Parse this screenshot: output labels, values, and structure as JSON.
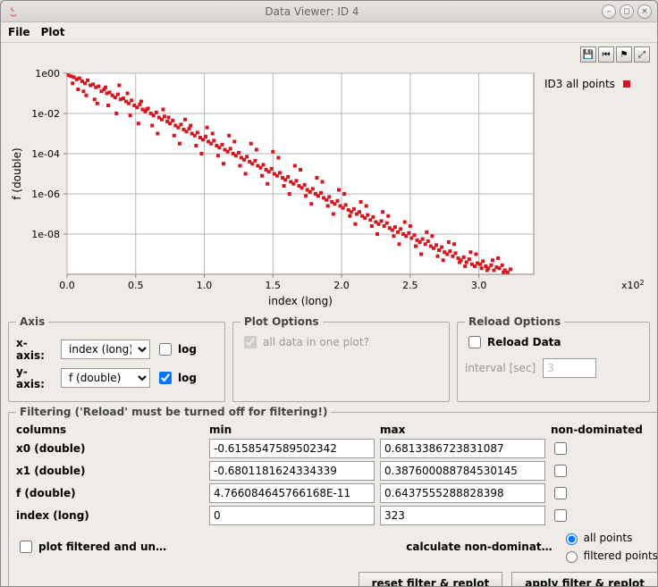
{
  "window": {
    "title": "Data Viewer: ID 4",
    "menus": [
      "File",
      "Plot"
    ]
  },
  "chart": {
    "type": "scatter",
    "xlabel": "index (long)",
    "ylabel": "f (double)",
    "xlim": [
      0,
      340
    ],
    "ylim_log10": [
      -10,
      0
    ],
    "x_ticks": [
      0,
      50,
      100,
      150,
      200,
      250,
      300
    ],
    "x_tick_labels": [
      "0.0",
      "0.5",
      "1.0",
      "1.5",
      "2.0",
      "2.5",
      "3.0"
    ],
    "x_multiplier_label": "x10",
    "x_multiplier_exp": "2",
    "y_ticks_log10": [
      0,
      -2,
      -4,
      -6,
      -8
    ],
    "y_tick_labels": [
      "1e00",
      "1e-02",
      "1e-04",
      "1e-06",
      "1e-08"
    ],
    "legend": {
      "label": "ID3 all points",
      "color": "#d6161e"
    },
    "marker_color": "#d6161e",
    "marker_size": 4,
    "background_color": "#ffffff",
    "grid_color": "#b9b5b1",
    "axis_color": "#8a8682",
    "points": [
      [
        1,
        -0.1
      ],
      [
        3,
        -0.15
      ],
      [
        5,
        -0.2
      ],
      [
        7,
        -0.3
      ],
      [
        9,
        -0.25
      ],
      [
        11,
        -0.4
      ],
      [
        13,
        -0.5
      ],
      [
        15,
        -0.35
      ],
      [
        17,
        -0.6
      ],
      [
        19,
        -0.55
      ],
      [
        21,
        -0.7
      ],
      [
        23,
        -0.65
      ],
      [
        25,
        -0.9
      ],
      [
        27,
        -0.8
      ],
      [
        29,
        -1.0
      ],
      [
        31,
        -0.95
      ],
      [
        33,
        -1.1
      ],
      [
        35,
        -1.2
      ],
      [
        37,
        -1.05
      ],
      [
        39,
        -1.3
      ],
      [
        41,
        -1.25
      ],
      [
        43,
        -1.4
      ],
      [
        45,
        -1.5
      ],
      [
        47,
        -1.35
      ],
      [
        49,
        -1.6
      ],
      [
        51,
        -1.7
      ],
      [
        53,
        -1.55
      ],
      [
        55,
        -1.8
      ],
      [
        57,
        -1.9
      ],
      [
        59,
        -1.75
      ],
      [
        61,
        -2.0
      ],
      [
        63,
        -2.1
      ],
      [
        65,
        -1.95
      ],
      [
        67,
        -2.2
      ],
      [
        69,
        -2.3
      ],
      [
        71,
        -2.15
      ],
      [
        73,
        -2.4
      ],
      [
        75,
        -2.5
      ],
      [
        77,
        -2.35
      ],
      [
        79,
        -2.6
      ],
      [
        81,
        -2.7
      ],
      [
        83,
        -2.55
      ],
      [
        85,
        -2.8
      ],
      [
        87,
        -2.9
      ],
      [
        89,
        -2.75
      ],
      [
        91,
        -3.0
      ],
      [
        93,
        -3.1
      ],
      [
        95,
        -2.95
      ],
      [
        97,
        -3.2
      ],
      [
        99,
        -3.3
      ],
      [
        101,
        -3.15
      ],
      [
        103,
        -3.4
      ],
      [
        105,
        -3.5
      ],
      [
        107,
        -3.35
      ],
      [
        109,
        -3.6
      ],
      [
        111,
        -3.7
      ],
      [
        113,
        -3.55
      ],
      [
        115,
        -3.8
      ],
      [
        117,
        -3.9
      ],
      [
        119,
        -3.75
      ],
      [
        121,
        -4.0
      ],
      [
        123,
        -4.1
      ],
      [
        125,
        -3.95
      ],
      [
        127,
        -4.2
      ],
      [
        129,
        -4.3
      ],
      [
        131,
        -4.15
      ],
      [
        133,
        -4.4
      ],
      [
        135,
        -4.5
      ],
      [
        137,
        -4.35
      ],
      [
        139,
        -4.6
      ],
      [
        141,
        -4.7
      ],
      [
        143,
        -4.55
      ],
      [
        145,
        -4.8
      ],
      [
        147,
        -4.9
      ],
      [
        149,
        -4.75
      ],
      [
        151,
        -5.0
      ],
      [
        153,
        -5.1
      ],
      [
        155,
        -4.95
      ],
      [
        157,
        -5.2
      ],
      [
        159,
        -5.3
      ],
      [
        161,
        -5.15
      ],
      [
        163,
        -5.4
      ],
      [
        165,
        -5.5
      ],
      [
        167,
        -5.35
      ],
      [
        169,
        -5.6
      ],
      [
        171,
        -5.7
      ],
      [
        173,
        -5.55
      ],
      [
        175,
        -5.8
      ],
      [
        177,
        -5.9
      ],
      [
        179,
        -5.75
      ],
      [
        181,
        -6.0
      ],
      [
        183,
        -6.1
      ],
      [
        185,
        -5.95
      ],
      [
        187,
        -6.2
      ],
      [
        189,
        -6.3
      ],
      [
        191,
        -6.15
      ],
      [
        193,
        -6.4
      ],
      [
        195,
        -6.5
      ],
      [
        197,
        -6.35
      ],
      [
        199,
        -6.6
      ],
      [
        201,
        -6.7
      ],
      [
        203,
        -6.55
      ],
      [
        205,
        -6.8
      ],
      [
        207,
        -6.9
      ],
      [
        209,
        -6.75
      ],
      [
        211,
        -7.0
      ],
      [
        213,
        -6.9
      ],
      [
        215,
        -7.1
      ],
      [
        217,
        -7.2
      ],
      [
        219,
        -7.05
      ],
      [
        221,
        -7.3
      ],
      [
        223,
        -7.15
      ],
      [
        225,
        -7.4
      ],
      [
        227,
        -7.5
      ],
      [
        229,
        -7.35
      ],
      [
        231,
        -7.6
      ],
      [
        233,
        -7.45
      ],
      [
        235,
        -7.7
      ],
      [
        237,
        -7.8
      ],
      [
        239,
        -7.65
      ],
      [
        241,
        -7.9
      ],
      [
        243,
        -7.75
      ],
      [
        245,
        -8.0
      ],
      [
        247,
        -8.1
      ],
      [
        249,
        -7.95
      ],
      [
        251,
        -8.2
      ],
      [
        253,
        -8.05
      ],
      [
        255,
        -8.3
      ],
      [
        257,
        -8.4
      ],
      [
        259,
        -8.25
      ],
      [
        261,
        -8.5
      ],
      [
        263,
        -8.35
      ],
      [
        265,
        -8.6
      ],
      [
        267,
        -8.7
      ],
      [
        269,
        -8.55
      ],
      [
        271,
        -8.8
      ],
      [
        273,
        -8.65
      ],
      [
        275,
        -8.9
      ],
      [
        277,
        -9.0
      ],
      [
        279,
        -8.85
      ],
      [
        281,
        -9.1
      ],
      [
        283,
        -8.95
      ],
      [
        285,
        -9.2
      ],
      [
        287,
        -9.3
      ],
      [
        289,
        -9.15
      ],
      [
        291,
        -9.4
      ],
      [
        293,
        -9.25
      ],
      [
        295,
        -9.5
      ],
      [
        297,
        -9.6
      ],
      [
        299,
        -9.45
      ],
      [
        301,
        -9.5
      ],
      [
        303,
        -9.35
      ],
      [
        305,
        -9.6
      ],
      [
        307,
        -9.7
      ],
      [
        309,
        -9.55
      ],
      [
        311,
        -9.8
      ],
      [
        313,
        -9.65
      ],
      [
        315,
        -9.7
      ],
      [
        317,
        -9.55
      ],
      [
        319,
        -9.8
      ],
      [
        321,
        -9.9
      ],
      [
        323,
        -9.75
      ],
      [
        8,
        -0.8
      ],
      [
        14,
        -1.1
      ],
      [
        22,
        -1.5
      ],
      [
        28,
        -0.7
      ],
      [
        36,
        -2.0
      ],
      [
        44,
        -1.0
      ],
      [
        52,
        -2.5
      ],
      [
        58,
        -1.8
      ],
      [
        66,
        -3.0
      ],
      [
        74,
        -2.2
      ],
      [
        82,
        -3.5
      ],
      [
        90,
        -2.6
      ],
      [
        98,
        -4.0
      ],
      [
        106,
        -3.0
      ],
      [
        114,
        -4.5
      ],
      [
        122,
        -3.4
      ],
      [
        130,
        -5.0
      ],
      [
        138,
        -3.8
      ],
      [
        146,
        -5.5
      ],
      [
        154,
        -4.2
      ],
      [
        162,
        -6.0
      ],
      [
        170,
        -4.8
      ],
      [
        178,
        -6.5
      ],
      [
        186,
        -5.4
      ],
      [
        194,
        -7.0
      ],
      [
        202,
        -6.0
      ],
      [
        210,
        -7.5
      ],
      [
        218,
        -6.6
      ],
      [
        226,
        -8.0
      ],
      [
        234,
        -7.1
      ],
      [
        242,
        -8.5
      ],
      [
        250,
        -7.6
      ],
      [
        258,
        -9.0
      ],
      [
        266,
        -8.1
      ],
      [
        274,
        -9.3
      ],
      [
        282,
        -8.5
      ],
      [
        290,
        -9.6
      ],
      [
        298,
        -9.0
      ],
      [
        306,
        -9.8
      ],
      [
        314,
        -9.2
      ],
      [
        4,
        -0.5
      ],
      [
        12,
        -0.9
      ],
      [
        20,
        -1.3
      ],
      [
        30,
        -1.6
      ],
      [
        38,
        -0.6
      ],
      [
        46,
        -2.1
      ],
      [
        54,
        -1.4
      ],
      [
        62,
        -2.6
      ],
      [
        70,
        -1.8
      ],
      [
        78,
        -3.1
      ],
      [
        86,
        -2.3
      ],
      [
        94,
        -3.6
      ],
      [
        102,
        -2.7
      ],
      [
        110,
        -4.1
      ],
      [
        118,
        -3.1
      ],
      [
        126,
        -4.6
      ],
      [
        134,
        -3.5
      ],
      [
        142,
        -5.1
      ],
      [
        150,
        -3.9
      ],
      [
        158,
        -5.6
      ],
      [
        166,
        -4.6
      ],
      [
        174,
        -6.1
      ],
      [
        182,
        -5.2
      ],
      [
        190,
        -6.6
      ],
      [
        198,
        -5.8
      ],
      [
        206,
        -7.1
      ],
      [
        214,
        -6.4
      ],
      [
        222,
        -7.6
      ],
      [
        230,
        -6.9
      ],
      [
        238,
        -8.1
      ],
      [
        246,
        -7.4
      ],
      [
        254,
        -8.6
      ],
      [
        262,
        -7.9
      ],
      [
        270,
        -9.1
      ],
      [
        278,
        -8.4
      ],
      [
        286,
        -9.4
      ],
      [
        294,
        -8.9
      ],
      [
        302,
        -9.7
      ],
      [
        310,
        -9.3
      ],
      [
        318,
        -9.9
      ]
    ]
  },
  "axis_panel": {
    "legend": "Axis",
    "x_label": "x-axis:",
    "y_label": "y-axis:",
    "x_select": "index (long)",
    "y_select": "f (double)",
    "log_label": "log",
    "x_log_checked": false,
    "y_log_checked": true
  },
  "plot_options": {
    "legend": "Plot Options",
    "all_data_label": "all data in one plot?",
    "all_data_checked": true
  },
  "reload_options": {
    "legend": "Reload Options",
    "reload_label": "Reload Data",
    "reload_checked": false,
    "interval_label": "interval [sec]",
    "interval_value": "3"
  },
  "filtering": {
    "legend": "Filtering ('Reload' must be turned off for filtering!)",
    "headers": {
      "columns": "columns",
      "min": "min",
      "max": "max",
      "nd": "non-dominated"
    },
    "rows": [
      {
        "name": "x0 (double)",
        "min": "-0.6158547589502342",
        "max": "0.6813386723831087",
        "nd": false
      },
      {
        "name": "x1 (double)",
        "min": "-0.6801181624334339",
        "max": "0.387600088784530145",
        "nd": false
      },
      {
        "name": "f (double)",
        "min": "4.766084645766168E-11",
        "max": "0.6437555288828398",
        "nd": false
      },
      {
        "name": "index (long)",
        "min": "0",
        "max": "323",
        "nd": false
      }
    ],
    "plot_filtered_label": "plot filtered and un…",
    "plot_filtered_checked": false,
    "calc_nd_label": "calculate non-dominat…",
    "radio_all": "all points",
    "radio_filtered": "filtered points",
    "radio_selected": "all",
    "btn_reset": "reset filter & replot",
    "btn_apply": "apply filter & replot"
  }
}
